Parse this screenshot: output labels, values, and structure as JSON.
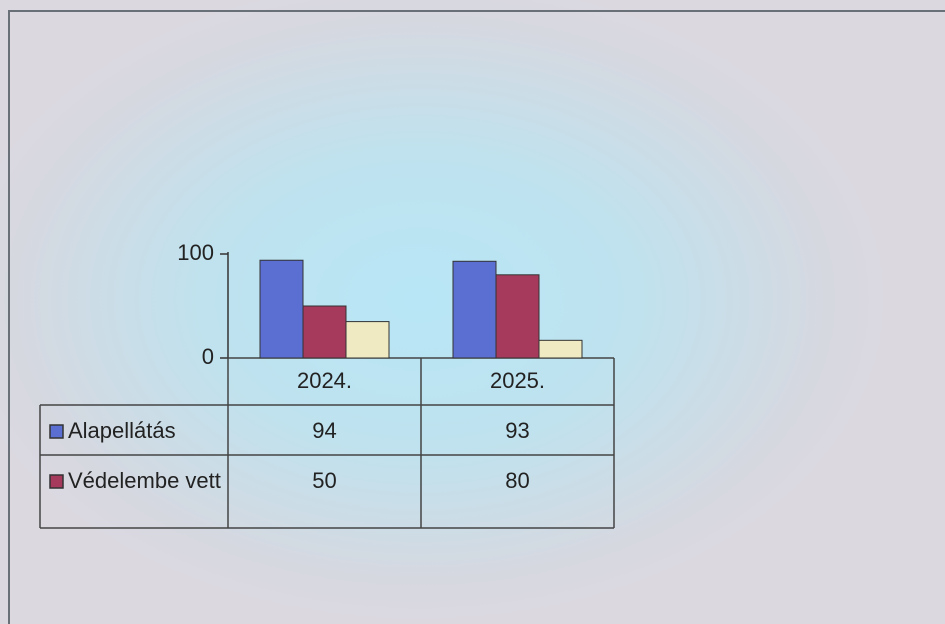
{
  "chart_data": {
    "type": "bar",
    "categories": [
      "2024.",
      "2025."
    ],
    "series": [
      {
        "name": "Alapellátás",
        "color": "#5b6fd2",
        "values": [
          94,
          93
        ]
      },
      {
        "name": "Védelembe vett",
        "color": "#a63a5c",
        "values": [
          50,
          80
        ]
      },
      {
        "color": "#efeac2",
        "values": [
          35,
          17
        ]
      }
    ],
    "ylim": [
      0,
      100
    ],
    "yticks": [
      0,
      100
    ]
  }
}
